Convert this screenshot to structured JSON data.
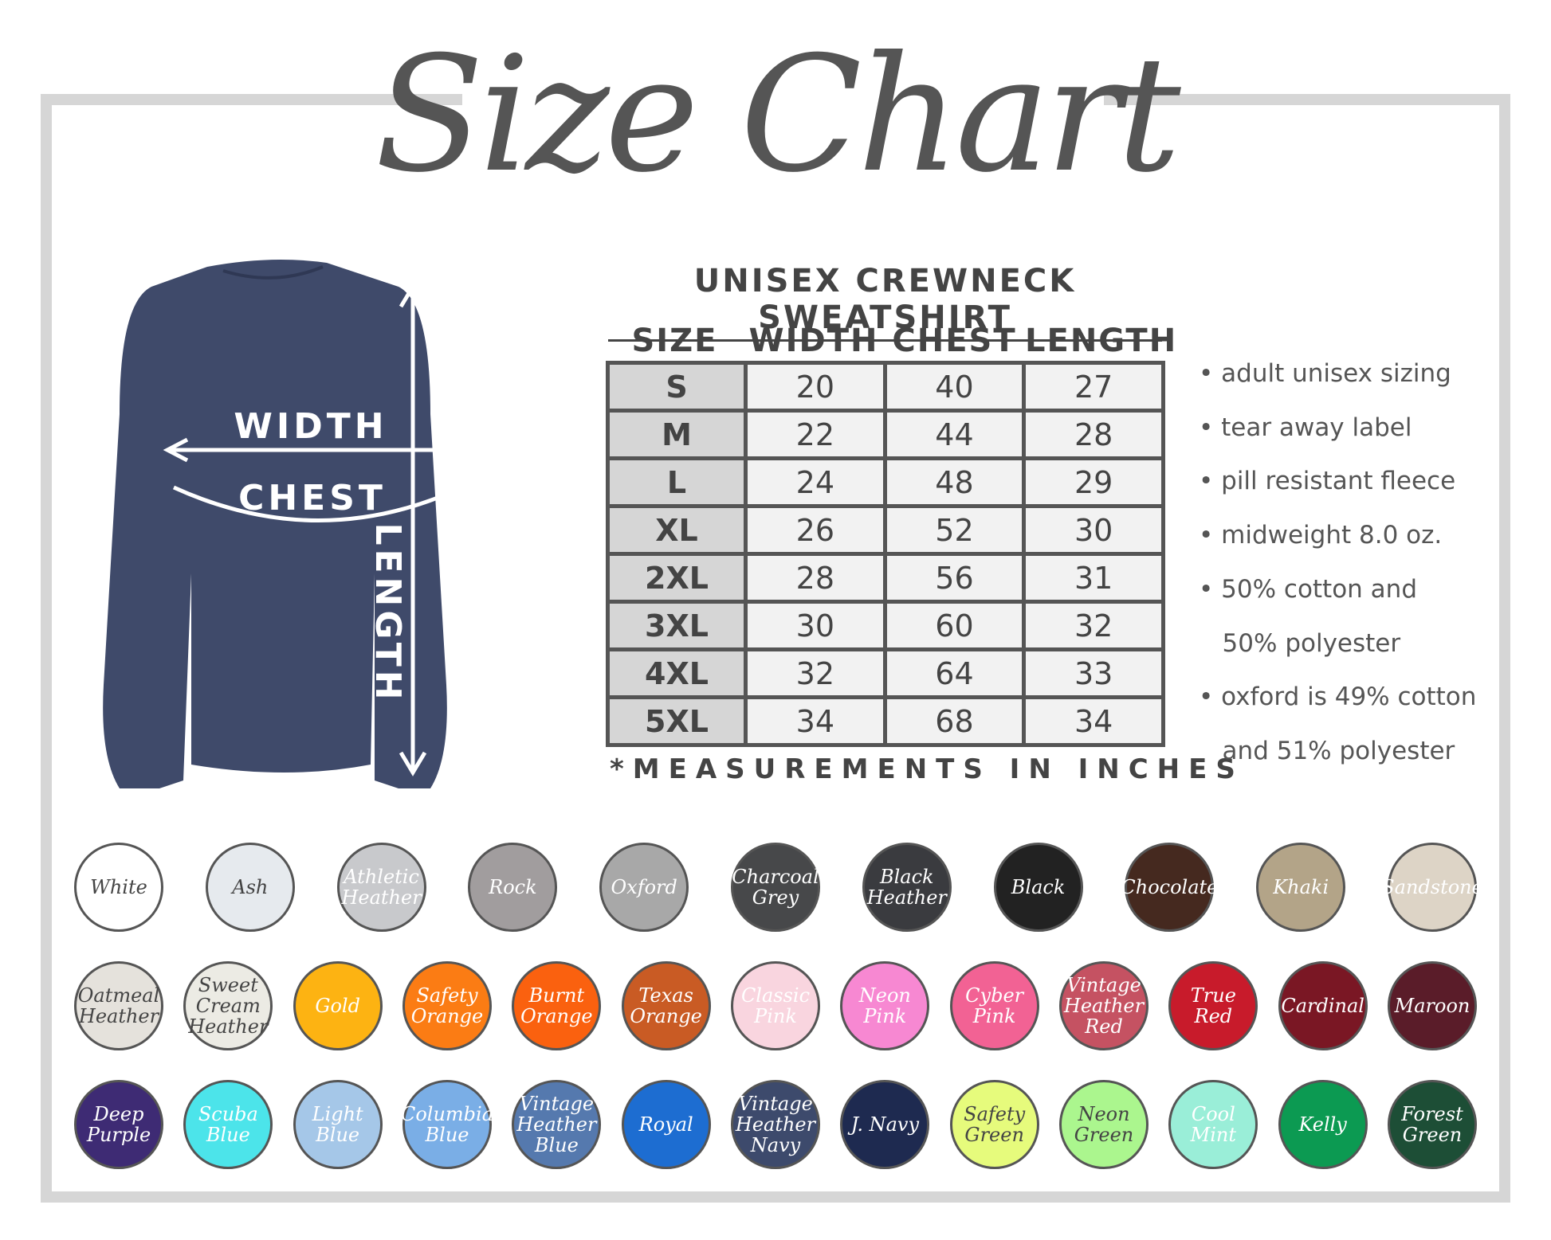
{
  "title": "Size Chart",
  "table": {
    "title": "UNISEX CREWNECK SWEATSHIRT",
    "headers": [
      "SIZE",
      "WIDTH",
      "CHEST",
      "LENGTH"
    ],
    "rows": [
      [
        "S",
        "20",
        "40",
        "27"
      ],
      [
        "M",
        "22",
        "44",
        "28"
      ],
      [
        "L",
        "24",
        "48",
        "29"
      ],
      [
        "XL",
        "26",
        "52",
        "30"
      ],
      [
        "2XL",
        "28",
        "56",
        "31"
      ],
      [
        "3XL",
        "30",
        "60",
        "32"
      ],
      [
        "4XL",
        "32",
        "64",
        "33"
      ],
      [
        "5XL",
        "34",
        "68",
        "34"
      ]
    ],
    "footnote": "*MEASUREMENTS IN INCHES"
  },
  "diagram": {
    "width": "WIDTH",
    "chest": "CHEST",
    "length": "LENGTH",
    "shirt_color": "#3f4a6a"
  },
  "features": [
    "• adult unisex sizing",
    "• tear away label",
    "• pill resistant fleece",
    "• midweight 8.0 oz.",
    "• 50% cotton and",
    "   50% polyester",
    "• oxford is 49% cotton",
    "   and 51% polyester"
  ],
  "colors": [
    [
      {
        "name": "White",
        "hex": "#ffffff",
        "text": "#444"
      },
      {
        "name": "Ash",
        "hex": "#e6eaee",
        "text": "#444"
      },
      {
        "name": "Athletic Heather",
        "hex": "#c8c9cc",
        "text": "#fff"
      },
      {
        "name": "Rock",
        "hex": "#a19d9e",
        "text": "#fff"
      },
      {
        "name": "Oxford",
        "hex": "#a8a8a8",
        "text": "#fff"
      },
      {
        "name": "Charcoal Grey",
        "hex": "#47484a",
        "text": "#fff"
      },
      {
        "name": "Black Heather",
        "hex": "#3a3b3f",
        "text": "#fff"
      },
      {
        "name": "Black",
        "hex": "#222222",
        "text": "#fff"
      },
      {
        "name": "Chocolate",
        "hex": "#45291f",
        "text": "#fff"
      },
      {
        "name": "Khaki",
        "hex": "#b3a488",
        "text": "#fff"
      },
      {
        "name": "Sandstone",
        "hex": "#ddd4c6",
        "text": "#fff"
      }
    ],
    [
      {
        "name": "Oatmeal Heather",
        "hex": "#e5e2dc",
        "text": "#444"
      },
      {
        "name": "Sweet Cream Heather",
        "hex": "#ecebe4",
        "text": "#444"
      },
      {
        "name": "Gold",
        "hex": "#fdb312",
        "text": "#fff"
      },
      {
        "name": "Safety Orange",
        "hex": "#fb7c14",
        "text": "#fff"
      },
      {
        "name": "Burnt Orange",
        "hex": "#fa610f",
        "text": "#fff"
      },
      {
        "name": "Texas Orange",
        "hex": "#c95b24",
        "text": "#fff"
      },
      {
        "name": "Classic Pink",
        "hex": "#f9d5df",
        "text": "#fff"
      },
      {
        "name": "Neon Pink",
        "hex": "#f788d2",
        "text": "#fff"
      },
      {
        "name": "Cyber Pink",
        "hex": "#f26294",
        "text": "#fff"
      },
      {
        "name": "Vintage Heather Red",
        "hex": "#c55262",
        "text": "#fff"
      },
      {
        "name": "True Red",
        "hex": "#c81b2b",
        "text": "#fff"
      },
      {
        "name": "Cardinal",
        "hex": "#7a1724",
        "text": "#fff"
      },
      {
        "name": "Maroon",
        "hex": "#5a1c29",
        "text": "#fff"
      }
    ],
    [
      {
        "name": "Deep Purple",
        "hex": "#3e2b74",
        "text": "#fff"
      },
      {
        "name": "Scuba Blue",
        "hex": "#4ce4ea",
        "text": "#fff"
      },
      {
        "name": "Light Blue",
        "hex": "#a5c7e8",
        "text": "#fff"
      },
      {
        "name": "Columbia Blue",
        "hex": "#7aaee6",
        "text": "#fff"
      },
      {
        "name": "Vintage Heather Blue",
        "hex": "#5579ae",
        "text": "#fff"
      },
      {
        "name": "Royal",
        "hex": "#1d6dd1",
        "text": "#fff"
      },
      {
        "name": "Vintage Heather Navy",
        "hex": "#3d4a6c",
        "text": "#fff"
      },
      {
        "name": "J. Navy",
        "hex": "#1e2a50",
        "text": "#fff"
      },
      {
        "name": "Safety Green",
        "hex": "#e6fb7c",
        "text": "#444"
      },
      {
        "name": "Neon Green",
        "hex": "#abf68e",
        "text": "#444"
      },
      {
        "name": "Cool Mint",
        "hex": "#9aeed8",
        "text": "#fff"
      },
      {
        "name": "Kelly",
        "hex": "#0c9a52",
        "text": "#fff"
      },
      {
        "name": "Forest Green",
        "hex": "#1d4e36",
        "text": "#fff"
      }
    ]
  ]
}
